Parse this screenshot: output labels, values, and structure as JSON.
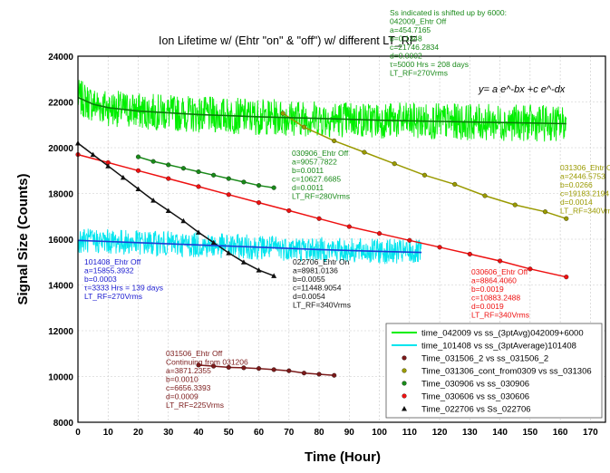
{
  "chart_data": {
    "type": "scatter",
    "title": "Ion Lifetime w/ (Ehtr \"on\" & \"off\") w/ different LT_RF",
    "xlabel": "Time (Hour)",
    "ylabel": "Signal Size (Counts)",
    "xlim": [
      0,
      175
    ],
    "ylim": [
      8000,
      24000
    ],
    "xticks": [
      0,
      10,
      20,
      30,
      40,
      50,
      60,
      70,
      80,
      90,
      100,
      110,
      120,
      130,
      140,
      150,
      160,
      170
    ],
    "yticks": [
      8000,
      10000,
      12000,
      14000,
      16000,
      18000,
      20000,
      22000,
      24000
    ],
    "grid": true,
    "legend_position": "bottom-right",
    "formula": "y= a e^-bx +c e^-dx",
    "series": [
      {
        "name": "time_042009 vs ss_(3ptAvg)042009+6000",
        "kind": "band",
        "color": "#00ee00",
        "x": [
          0,
          162
        ],
        "center_x": [
          0,
          5,
          10,
          20,
          40,
          60,
          80,
          100,
          120,
          140,
          162
        ],
        "center_y": [
          22200,
          21900,
          21750,
          21600,
          21450,
          21350,
          21280,
          21200,
          21150,
          21100,
          21050
        ],
        "spread": 800
      },
      {
        "name": "time_101408 vs ss_(3ptAverage)101408",
        "kind": "band",
        "color": "#00e5ee",
        "x": [
          0,
          114
        ],
        "center_x": [
          0,
          20,
          40,
          60,
          80,
          100,
          114
        ],
        "center_y": [
          15950,
          15850,
          15750,
          15650,
          15550,
          15470,
          15420
        ],
        "spread": 550
      },
      {
        "name": "Time_031506_2 vs ss_031506_2",
        "kind": "points",
        "color": "#7b1a1a",
        "marker": "circle",
        "x": [
          40,
          45,
          50,
          55,
          60,
          65,
          70,
          75,
          80,
          85
        ],
        "y": [
          10500,
          10450,
          10400,
          10380,
          10350,
          10300,
          10250,
          10150,
          10100,
          10050
        ]
      },
      {
        "name": "Time_031306_cont_from0309 vs ss_031306",
        "kind": "points",
        "color": "#9a9a00",
        "marker": "circle",
        "x": [
          68,
          75,
          85,
          95,
          105,
          115,
          125,
          135,
          145,
          155,
          162
        ],
        "y": [
          21500,
          20900,
          20300,
          19800,
          19300,
          18800,
          18400,
          17900,
          17500,
          17200,
          16900
        ]
      },
      {
        "name": "Time_030906 vs ss_030906",
        "kind": "points",
        "color": "#1a8a1a",
        "marker": "circle",
        "x": [
          20,
          25,
          30,
          35,
          40,
          45,
          50,
          55,
          60,
          65
        ],
        "y": [
          19600,
          19400,
          19250,
          19100,
          18950,
          18800,
          18650,
          18500,
          18350,
          18250
        ]
      },
      {
        "name": "Time_030606 vs ss_030606",
        "kind": "points",
        "color": "#ee1111",
        "marker": "circle",
        "x": [
          0,
          10,
          20,
          30,
          40,
          50,
          60,
          70,
          80,
          90,
          100,
          110,
          120,
          130,
          140,
          150,
          162
        ],
        "y": [
          19700,
          19350,
          19000,
          18650,
          18300,
          17950,
          17600,
          17250,
          16900,
          16550,
          16250,
          15950,
          15650,
          15350,
          15050,
          14700,
          14350
        ]
      },
      {
        "name": "Time_022706 vs Ss_022706",
        "kind": "points",
        "color": "#111111",
        "marker": "triangle",
        "x": [
          0,
          5,
          10,
          15,
          20,
          25,
          30,
          35,
          40,
          45,
          50,
          55,
          60,
          65
        ],
        "y": [
          20200,
          19700,
          19200,
          18700,
          18200,
          17700,
          17250,
          16800,
          16300,
          15850,
          15400,
          15000,
          14650,
          14400
        ]
      }
    ],
    "annotations": [
      {
        "id": "shift",
        "color": "#1a8a1a",
        "lines": [
          "Ss indicated is shifted up by 6000:",
          "042009_Ehtr Off",
          "a=454.7165",
          "b=0.1348",
          "c=21746.2834",
          "d=0.0002",
          "τ=5000 Hrs = 208 days",
          "LT_RF=270Vrms"
        ]
      },
      {
        "id": "e030906",
        "color": "#1a8a1a",
        "lines": [
          "030906_Ehtr Off",
          "a=9057.7822",
          "b=0.0011",
          "c=10627.6685",
          "d=0.0011",
          "LT_RF=280Vrms"
        ]
      },
      {
        "id": "e031306",
        "color": "#9a9a00",
        "lines": [
          "031306_Ehtr Off",
          "a=2446.5753",
          "b=0.0266",
          "c=19183.2194",
          "d=0.0014",
          "LT_RF=340Vrms"
        ]
      },
      {
        "id": "e101408",
        "color": "#1a1ad0",
        "lines": [
          "101408_Ehtr Off",
          "a=15855.3932",
          "b=0.0003",
          "",
          "τ=3333 Hrs = 139 days",
          "LT_RF=270Vrms"
        ]
      },
      {
        "id": "e022706",
        "color": "#111111",
        "lines": [
          "022706_Ehtr On",
          "a=8981.0136",
          "b=0.0055",
          "c=11448.9054",
          "d=0.0054",
          "LT_RF=340Vrms"
        ]
      },
      {
        "id": "e030606",
        "color": "#ee1111",
        "lines": [
          "030606_Ehtr Off",
          "a=8864.4060",
          "b=0.0019",
          "c=10883.2488",
          "d=0.0019",
          "LT_RF=340Vrms"
        ]
      },
      {
        "id": "e031506",
        "color": "#7b1a1a",
        "lines": [
          "031506_Ehtr Off",
          "Continuing from 031206",
          "a=3871.2355",
          "b=0.0010",
          "c=6656.3393",
          "d=0.0009",
          "LT_RF=225Vrms"
        ]
      }
    ]
  }
}
